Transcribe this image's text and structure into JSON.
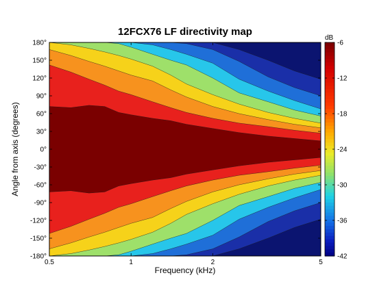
{
  "chart_data": {
    "type": "heatmap",
    "title": "12FCX76 LF directivity map",
    "xlabel": "Frequency (kHz)",
    "ylabel": "Angle from axis (degrees)",
    "x_scale": "log",
    "xlim": [
      0.5,
      5
    ],
    "ylim": [
      -180,
      180
    ],
    "x_ticks": [
      {
        "value": 0.5,
        "label": "0.5"
      },
      {
        "value": 1,
        "label": "1"
      },
      {
        "value": 2,
        "label": "2"
      },
      {
        "value": 5,
        "label": "5"
      }
    ],
    "y_ticks": [
      {
        "value": 180,
        "label": "180°"
      },
      {
        "value": 150,
        "label": "150°"
      },
      {
        "value": 120,
        "label": "120°"
      },
      {
        "value": 90,
        "label": "90°"
      },
      {
        "value": 60,
        "label": "60°"
      },
      {
        "value": 30,
        "label": "30°"
      },
      {
        "value": 0,
        "label": "0°"
      },
      {
        "value": -30,
        "label": "-30°"
      },
      {
        "value": -60,
        "label": "-60°"
      },
      {
        "value": -90,
        "label": "-90°"
      },
      {
        "value": -120,
        "label": "-120°"
      },
      {
        "value": -150,
        "label": "-150°"
      },
      {
        "value": -180,
        "label": "-180°"
      }
    ],
    "colorbar": {
      "unit": "dB",
      "range": [
        -42,
        -6
      ],
      "ticks": [
        {
          "value": -6,
          "label": "-6"
        },
        {
          "value": -12,
          "label": "-12"
        },
        {
          "value": -18,
          "label": "-18"
        },
        {
          "value": -24,
          "label": "-24"
        },
        {
          "value": -30,
          "label": "-30"
        },
        {
          "value": -36,
          "label": "-36"
        },
        {
          "value": -42,
          "label": "-42"
        }
      ]
    },
    "contour_levels_db": [
      -3,
      -6,
      -9,
      -12,
      -18,
      -24,
      -30,
      -36
    ],
    "level_colors": [
      "#7a0000",
      "#e8211d",
      "#f7921e",
      "#f6d21a",
      "#9ee06a",
      "#27c6ea",
      "#1f6fd8",
      "#1a2fa8",
      "#0b1470"
    ],
    "frequencies_khz": [
      0.5,
      0.6,
      0.7,
      0.8,
      0.9,
      1.0,
      1.2,
      1.4,
      1.6,
      2.0,
      2.5,
      3.2,
      4.0,
      5.0
    ],
    "angle_at_level_deg": {
      "minus3": [
        72,
        70,
        74,
        72,
        62,
        58,
        52,
        48,
        42,
        35,
        28,
        22,
        18,
        14
      ],
      "minus6": [
        142,
        130,
        118,
        108,
        98,
        92,
        80,
        70,
        62,
        52,
        44,
        38,
        32,
        27
      ],
      "minus9": [
        168,
        158,
        148,
        140,
        132,
        125,
        115,
        100,
        88,
        72,
        60,
        50,
        42,
        36
      ],
      "minus12": [
        180,
        176,
        170,
        164,
        158,
        152,
        140,
        125,
        110,
        92,
        76,
        62,
        52,
        44
      ],
      "minus18": [
        180,
        180,
        180,
        180,
        178,
        172,
        160,
        150,
        142,
        120,
        95,
        80,
        66,
        56
      ],
      "minus24": [
        180,
        180,
        180,
        180,
        180,
        180,
        176,
        168,
        160,
        145,
        118,
        98,
        82,
        68
      ],
      "minus30": [
        180,
        180,
        180,
        180,
        180,
        180,
        180,
        180,
        178,
        168,
        148,
        122,
        104,
        90
      ],
      "minus36": [
        180,
        180,
        180,
        180,
        180,
        180,
        180,
        180,
        180,
        180,
        168,
        150,
        132,
        118
      ]
    }
  }
}
